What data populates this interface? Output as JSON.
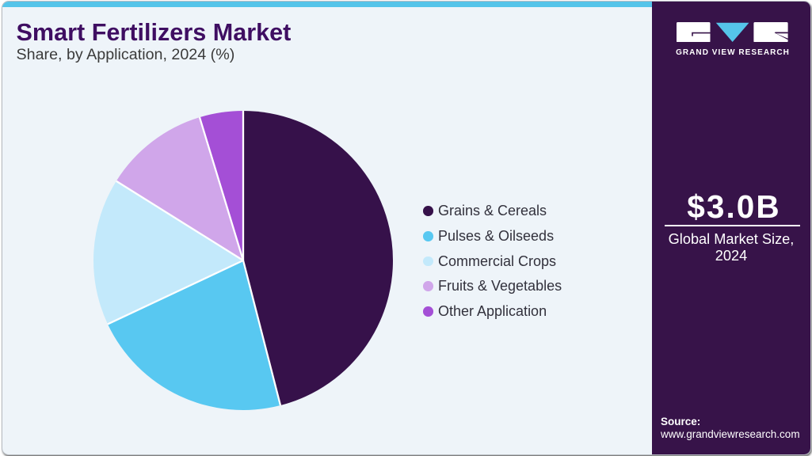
{
  "header": {
    "title": "Smart Fertilizers Market",
    "subtitle": "Share, by Application, 2024 (%)"
  },
  "chart_data": {
    "type": "pie",
    "title": "Smart Fertilizers Market Share, by Application, 2024 (%)",
    "categories": [
      "Grains & Cereals",
      "Pulses & Oilseeds",
      "Commercial Crops",
      "Fruits & Vegetables",
      "Other Application"
    ],
    "values": [
      46.0,
      22.0,
      15.9,
      11.4,
      4.7
    ],
    "colors": [
      "#36114a",
      "#58c8f1",
      "#c3e9fb",
      "#d0a6ea",
      "#a44fd6"
    ],
    "units": "percent",
    "start_angle_deg": 0,
    "direction": "clockwise",
    "legend_position": "right",
    "slice_border_color": "#ffffff"
  },
  "sidebar": {
    "logo_name": "Grand View Research logo",
    "logo_text": "GRAND VIEW RESEARCH",
    "market_size_value": "$3.0B",
    "market_size_label": "Global Market Size, 2024",
    "source_label": "Source:",
    "source_url": "www.grandviewresearch.com"
  },
  "colors": {
    "accent_cyan": "#55c4e9",
    "sidebar_bg": "#371349",
    "main_bg": "#eef4f9",
    "title_color": "#3f0e62"
  }
}
